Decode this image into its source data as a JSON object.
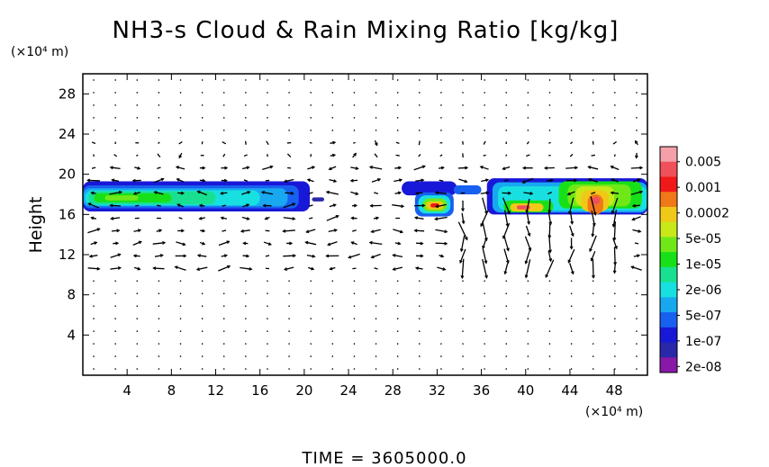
{
  "chart_data": {
    "type": "heatmap",
    "title": "NH3-s Cloud & Rain Mixing Ratio [kg/kg]",
    "ylabel": "Height",
    "y_unit_label": "(×10⁴ m)",
    "x_unit_label": "(×10⁴ m)",
    "footer": "TIME = 3605000.0",
    "xlim": [
      0,
      51
    ],
    "ylim": [
      0,
      30
    ],
    "x_ticks": [
      4,
      8,
      12,
      16,
      20,
      24,
      28,
      32,
      36,
      40,
      44,
      48
    ],
    "y_ticks": [
      4,
      8,
      12,
      16,
      20,
      24,
      28
    ],
    "colorbar": {
      "labels": [
        "0.005",
        "0.001",
        "0.0002",
        "5e-05",
        "1e-05",
        "2e-06",
        "5e-07",
        "1e-07",
        "2e-08"
      ],
      "colors": [
        "#f4a0a8",
        "#f0505a",
        "#f01818",
        "#f07818",
        "#f0c818",
        "#c8e818",
        "#70e818",
        "#18e018",
        "#18e090",
        "#18e0e0",
        "#18a8f0",
        "#1860f0",
        "#1818d8",
        "#2828a8",
        "#8818a8"
      ]
    },
    "cloud_regions": [
      {
        "name": "left-band",
        "x_range": [
          0,
          20.5
        ],
        "y_range": [
          16.3,
          19.3
        ],
        "peak_level": "1e-05"
      },
      {
        "name": "blob-32",
        "x_range": [
          30,
          33.5
        ],
        "y_range": [
          15.8,
          18.2
        ],
        "peak_level": "0.005"
      },
      {
        "name": "right-band",
        "x_range": [
          36.5,
          51
        ],
        "y_range": [
          16,
          19.8
        ],
        "peak_level": "0.001"
      }
    ],
    "wind_vectors": "displayed"
  }
}
